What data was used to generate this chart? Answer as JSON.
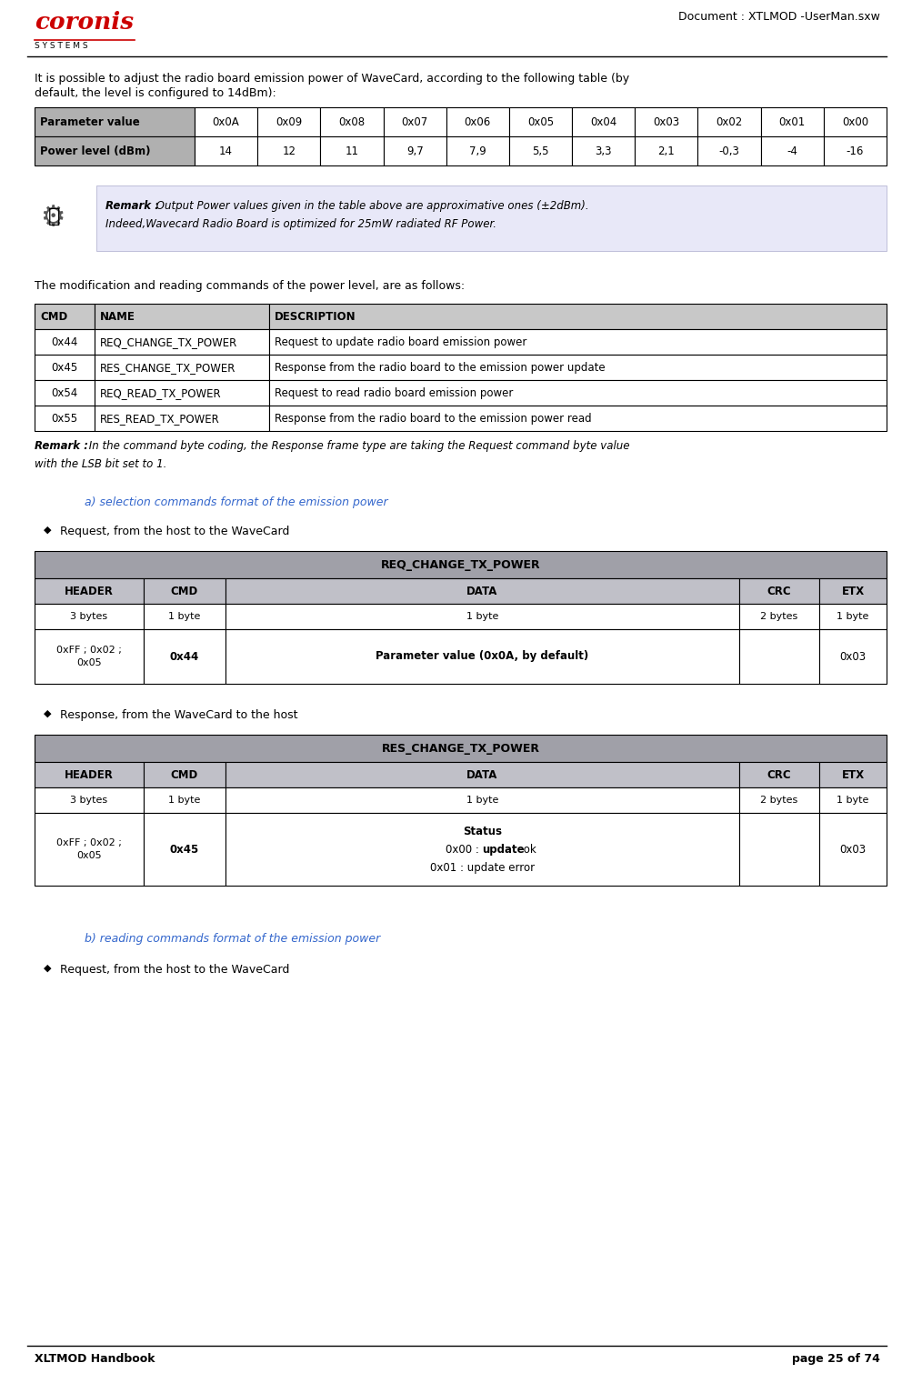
{
  "doc_title": "Document : XTLMOD -UserMan.sxw",
  "footer_left": "XLTMOD Handbook",
  "footer_right": "page 25 of 74",
  "intro_text_line1": "It is possible to adjust the radio board emission power of WaveCard, according to the following table (by",
  "intro_text_line2": "default, the level is configured to 14dBm):",
  "param_table_headers": [
    "Parameter value",
    "0x0A",
    "0x09",
    "0x08",
    "0x07",
    "0x06",
    "0x05",
    "0x04",
    "0x03",
    "0x02",
    "0x01",
    "0x00"
  ],
  "param_table_row2": [
    "Power level (dBm)",
    "14",
    "12",
    "11",
    "9,7",
    "7,9",
    "5,5",
    "3,3",
    "2,1",
    "-0,3",
    "-4",
    "-16"
  ],
  "remark1_bold": "Remark :",
  "remark1_rest": " Output Power values given in the table above are approximative ones (±2dBm).",
  "remark1_line2": "Indeed,Wavecard Radio Board is optimized for 25mW radiated RF Power.",
  "mid_text": "The modification and reading commands of the power level, are as follows:",
  "cmd_table_headers": [
    "CMD",
    "NAME",
    "DESCRIPTION"
  ],
  "cmd_table_rows": [
    [
      "0x44",
      "REQ_CHANGE_TX_POWER",
      "Request to update radio board emission power"
    ],
    [
      "0x45",
      "RES_CHANGE_TX_POWER",
      "Response from the radio board to the emission power update"
    ],
    [
      "0x54",
      "REQ_READ_TX_POWER",
      "Request to read radio board emission power"
    ],
    [
      "0x55",
      "RES_READ_TX_POWER",
      "Response from the radio board to the emission power read"
    ]
  ],
  "remark2_bold": "Remark :",
  "remark2_rest": " In the command byte coding, the Response frame type are taking the Request command byte value",
  "remark2_line2": "with the LSB bit set to 1.",
  "section_a_title": "a) selection commands format of the emission power",
  "bullet1_text": "Request, from the host to the WaveCard",
  "req_change_title": "REQ_CHANGE_TX_POWER",
  "req_change_headers": [
    "HEADER",
    "CMD",
    "DATA",
    "CRC",
    "ETX"
  ],
  "req_change_row1": [
    "3 bytes",
    "1 byte",
    "1 byte",
    "2 bytes",
    "1 byte"
  ],
  "req_change_row2_header": "0xFF ; 0x02 ;\n0x05",
  "req_change_row2_cmd": "0x44",
  "req_change_row2_data": "Parameter value (0x0A, by default)",
  "req_change_row2_etx": "0x03",
  "bullet2_text": "Response, from the WaveCard to the host",
  "res_change_title": "RES_CHANGE_TX_POWER",
  "res_change_headers": [
    "HEADER",
    "CMD",
    "DATA",
    "CRC",
    "ETX"
  ],
  "res_change_row1": [
    "3 bytes",
    "1 byte",
    "1 byte",
    "2 bytes",
    "1 byte"
  ],
  "res_change_row2_header": "0xFF ; 0x02 ;\n0x05",
  "res_change_row2_cmd": "0x45",
  "res_change_row2_data_line1": "Status",
  "res_change_row2_data_line2_bold": "0x00 : ",
  "res_change_row2_data_line2_bolder": "update",
  "res_change_row2_data_line2_rest": " ok",
  "res_change_row2_data_line3": "0x01 : update error",
  "res_change_row2_etx": "0x03",
  "section_b_title": "b) reading commands format of the emission power",
  "bullet3_text": "Request, from the host to the WaveCard",
  "coronis_red": "#cc0000",
  "italic_color": "#3366cc",
  "page_bg": "#ffffff",
  "param_header_bg": "#b0b0b0",
  "cmd_header_bg": "#c8c8c8",
  "proto_title_bg": "#a0a0a8",
  "proto_header_bg": "#c0c0c8",
  "remark_bg": "#e8e8f8"
}
